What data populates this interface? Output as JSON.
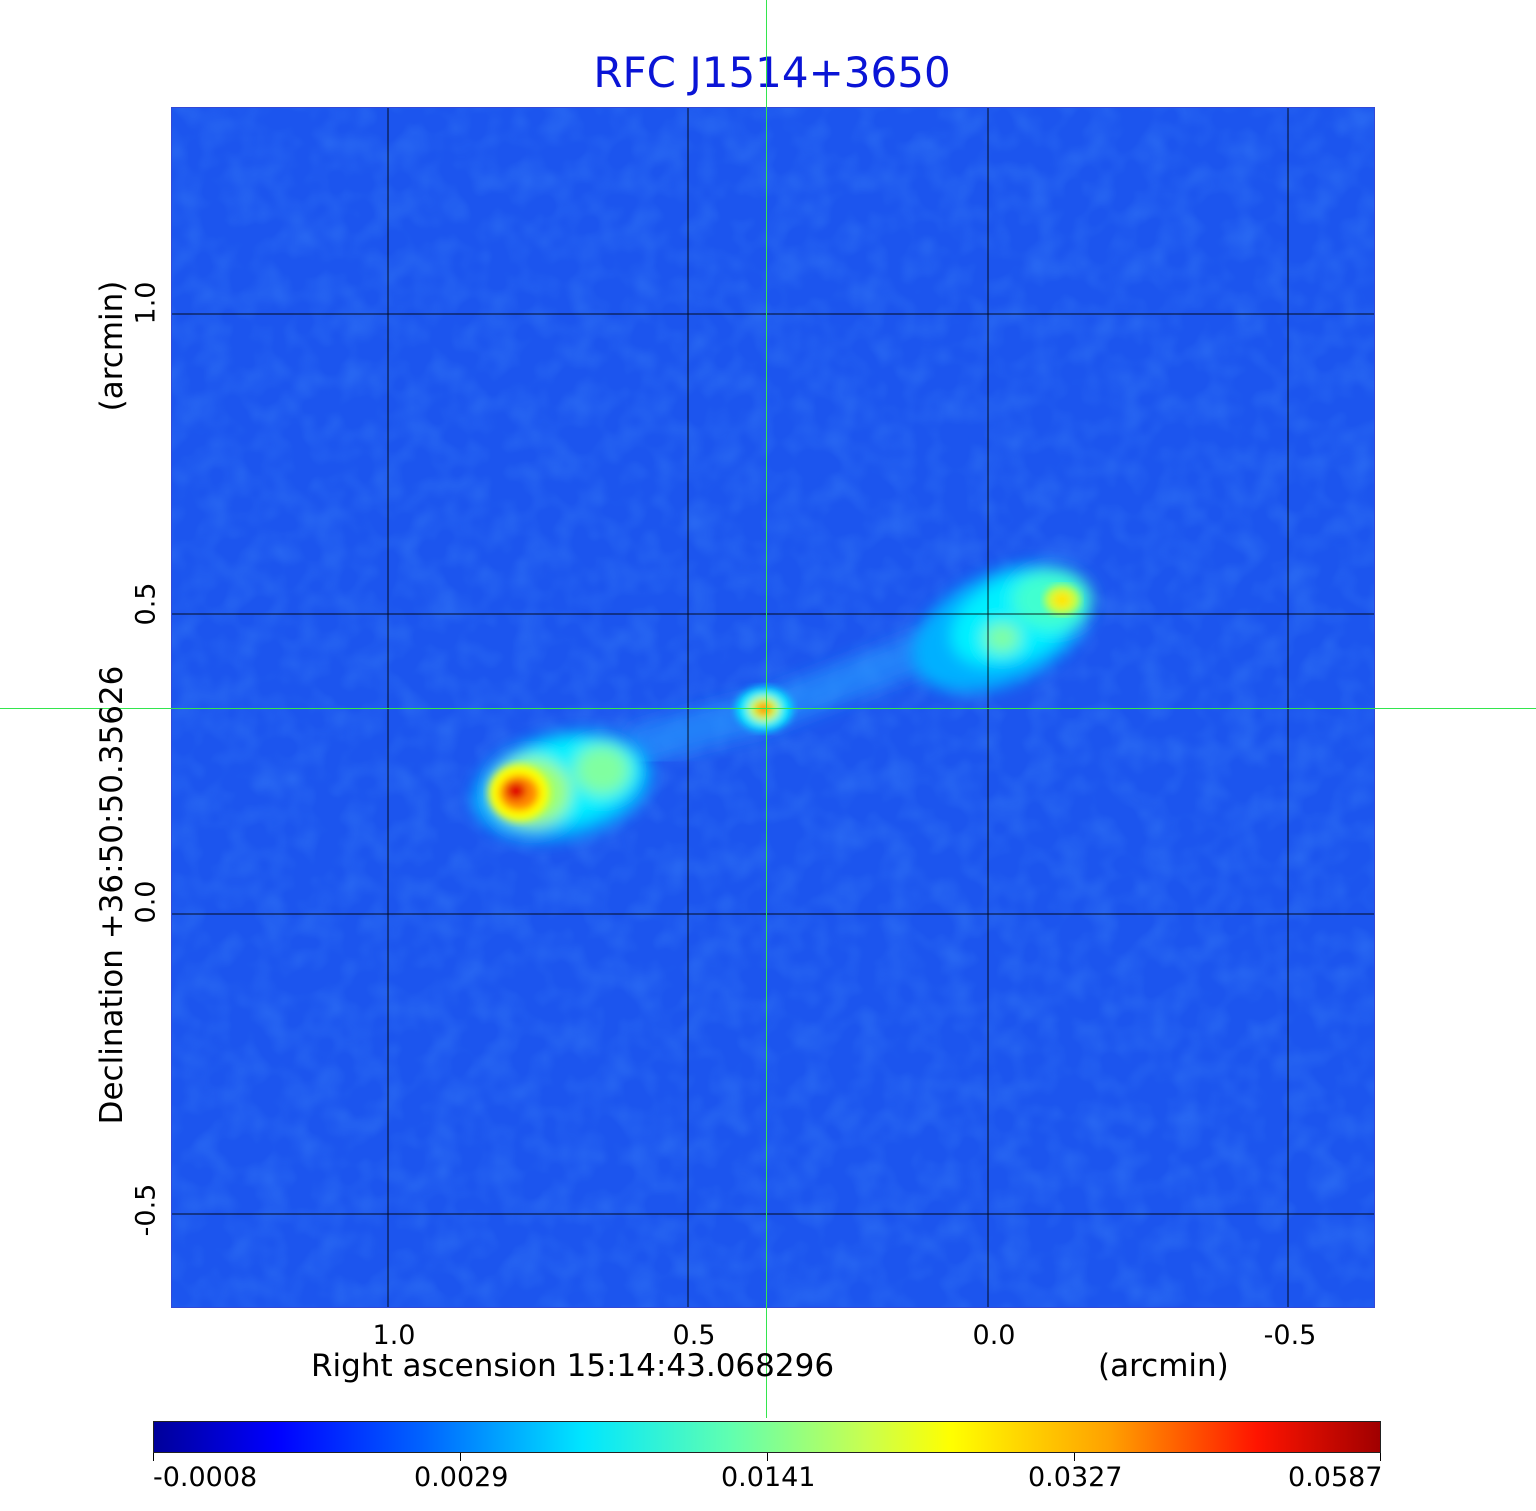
{
  "title": "RFC J1514+3650",
  "x_axis": {
    "label_left": "Right ascension  15:14:43.068296",
    "label_unit": "(arcmin)",
    "ticks": [
      "1.0",
      "0.5",
      "0.0",
      "-0.5"
    ]
  },
  "y_axis": {
    "label": "Declination  +36:50:50.35626",
    "label_unit": "(arcmin)",
    "ticks": [
      "1.0",
      "0.5",
      "0.0",
      "-0.5"
    ]
  },
  "colorbar": {
    "ticks": [
      "-0.0008",
      "0.0029",
      "0.0141",
      "0.0327",
      "0.0587"
    ],
    "colormap": "jet"
  },
  "colors": {
    "title": "#0a14d6",
    "crosshair": "#33e64d",
    "background_field": "#1c55ee"
  }
}
